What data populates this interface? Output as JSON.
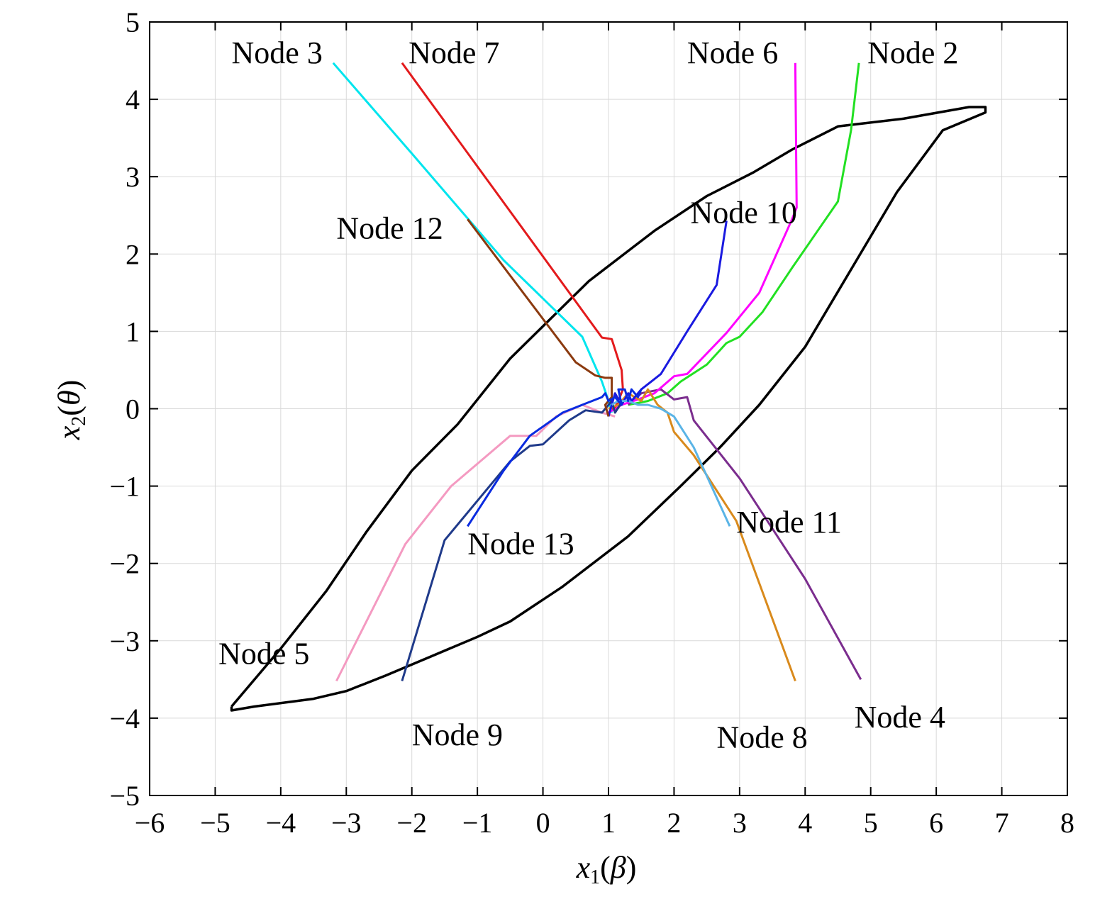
{
  "chart_data": {
    "type": "line",
    "title": "",
    "xlabel": {
      "var": "x",
      "sub": "1",
      "param": "β"
    },
    "ylabel": {
      "var": "x",
      "sub": "2",
      "param": "θ"
    },
    "xlim": [
      -6,
      8
    ],
    "ylim": [
      -5,
      5
    ],
    "xticks": [
      -6,
      -5,
      -4,
      -3,
      -2,
      -1,
      0,
      1,
      2,
      3,
      4,
      5,
      6,
      7,
      8
    ],
    "yticks": [
      -5,
      -4,
      -3,
      -2,
      -1,
      0,
      1,
      2,
      3,
      4,
      5
    ],
    "xtick_labels": [
      "−6",
      "−5",
      "−4",
      "−3",
      "−2",
      "−1",
      "0",
      "1",
      "2",
      "3",
      "4",
      "5",
      "6",
      "7",
      "8"
    ],
    "ytick_labels": [
      "−5",
      "−4",
      "−3",
      "−2",
      "−1",
      "0",
      "1",
      "2",
      "3",
      "4",
      "5"
    ],
    "grid": true,
    "boundary": {
      "color": "#000000",
      "points": [
        [
          -4.75,
          -3.85
        ],
        [
          -4.75,
          -3.9
        ],
        [
          -4.4,
          -3.85
        ],
        [
          -3.5,
          -3.75
        ],
        [
          -3,
          -3.65
        ],
        [
          -2.4,
          -3.45
        ],
        [
          -1.7,
          -3.2
        ],
        [
          -1,
          -2.95
        ],
        [
          -0.5,
          -2.75
        ],
        [
          0.3,
          -2.3
        ],
        [
          1.3,
          -1.65
        ],
        [
          2.1,
          -1.0
        ],
        [
          2.7,
          -0.5
        ],
        [
          3.3,
          0.05
        ],
        [
          4.0,
          0.8
        ],
        [
          4.7,
          1.8
        ],
        [
          5.4,
          2.8
        ],
        [
          6.1,
          3.6
        ],
        [
          6.75,
          3.83
        ],
        [
          6.75,
          3.9
        ],
        [
          6.5,
          3.9
        ],
        [
          5.5,
          3.75
        ],
        [
          4.5,
          3.65
        ],
        [
          3.8,
          3.35
        ],
        [
          3.2,
          3.05
        ],
        [
          2.5,
          2.75
        ],
        [
          1.7,
          2.3
        ],
        [
          0.7,
          1.65
        ],
        [
          -0.5,
          0.65
        ],
        [
          -1.3,
          -0.2
        ],
        [
          -2.0,
          -0.8
        ],
        [
          -2.7,
          -1.6
        ],
        [
          -3.3,
          -2.35
        ],
        [
          -4.0,
          -3.1
        ],
        [
          -4.75,
          -3.85
        ]
      ]
    },
    "series": [
      {
        "label": "Node 2",
        "color": "#22e022",
        "points": [
          [
            4.82,
            4.47
          ],
          [
            4.7,
            3.6
          ],
          [
            4.5,
            2.68
          ],
          [
            3.8,
            1.82
          ],
          [
            3.35,
            1.25
          ],
          [
            3.0,
            0.93
          ],
          [
            2.8,
            0.85
          ],
          [
            2.5,
            0.57
          ],
          [
            2.1,
            0.35
          ],
          [
            1.9,
            0.2
          ],
          [
            1.6,
            0.1
          ],
          [
            1.3,
            0.05
          ]
        ]
      },
      {
        "label": "Node 3",
        "color": "#00e5ee",
        "points": [
          [
            -3.2,
            4.47
          ],
          [
            -2.0,
            3.3
          ],
          [
            -0.6,
            1.92
          ],
          [
            0.6,
            0.93
          ],
          [
            0.9,
            0.35
          ],
          [
            0.98,
            0.15
          ],
          [
            1.05,
            -0.05
          ]
        ]
      },
      {
        "label": "Node 4",
        "color": "#7b2d8e",
        "points": [
          [
            4.85,
            -3.5
          ],
          [
            4.0,
            -2.2
          ],
          [
            3.0,
            -0.9
          ],
          [
            2.3,
            -0.15
          ],
          [
            2.2,
            0.15
          ],
          [
            2.0,
            0.12
          ],
          [
            1.8,
            0.25
          ],
          [
            1.5,
            0.2
          ],
          [
            1.3,
            0.05
          ]
        ]
      },
      {
        "label": "Node 5",
        "color": "#f49ac1",
        "points": [
          [
            -3.15,
            -3.52
          ],
          [
            -2.1,
            -1.75
          ],
          [
            -1.4,
            -1.0
          ],
          [
            -0.5,
            -0.35
          ],
          [
            -0.1,
            -0.35
          ],
          [
            0.2,
            -0.1
          ],
          [
            0.6,
            0.05
          ],
          [
            0.9,
            -0.05
          ],
          [
            1.1,
            -0.1
          ]
        ]
      },
      {
        "label": "Node 6",
        "color": "#ff00ff",
        "points": [
          [
            3.85,
            4.47
          ],
          [
            3.87,
            2.6
          ],
          [
            3.8,
            2.45
          ],
          [
            3.3,
            1.5
          ],
          [
            2.8,
            0.98
          ],
          [
            2.2,
            0.45
          ],
          [
            2.0,
            0.42
          ],
          [
            1.7,
            0.2
          ],
          [
            1.45,
            0.12
          ],
          [
            1.2,
            0.05
          ],
          [
            1.0,
            -0.05
          ]
        ]
      },
      {
        "label": "Node 7",
        "color": "#e31a1c",
        "points": [
          [
            -2.15,
            4.47
          ],
          [
            0.9,
            0.92
          ],
          [
            1.05,
            0.9
          ],
          [
            1.2,
            0.5
          ],
          [
            1.22,
            0.25
          ],
          [
            1.15,
            0.1
          ],
          [
            1.1,
            0.02
          ],
          [
            1.05,
            0.0
          ]
        ]
      },
      {
        "label": "Node 8",
        "color": "#d98a1c",
        "points": [
          [
            3.85,
            -3.52
          ],
          [
            2.95,
            -1.45
          ],
          [
            2.3,
            -0.6
          ],
          [
            2.0,
            -0.3
          ],
          [
            1.9,
            -0.05
          ],
          [
            1.75,
            0.05
          ],
          [
            1.6,
            0.25
          ],
          [
            1.5,
            0.1
          ],
          [
            1.3,
            0.2
          ],
          [
            1.15,
            0.05
          ],
          [
            1.0,
            0.0
          ]
        ]
      },
      {
        "label": "Node 9",
        "color": "#1f3a8a",
        "points": [
          [
            -2.15,
            -3.52
          ],
          [
            -1.5,
            -1.7
          ],
          [
            -0.5,
            -0.68
          ],
          [
            -0.2,
            -0.48
          ],
          [
            0.0,
            -0.46
          ],
          [
            0.4,
            -0.15
          ],
          [
            0.65,
            -0.02
          ],
          [
            0.9,
            -0.05
          ],
          [
            1.05,
            0.1
          ],
          [
            1.1,
            -0.05
          ],
          [
            1.2,
            0.08
          ]
        ]
      },
      {
        "label": "Node 10",
        "color": "#1a1ae0",
        "points": [
          [
            2.8,
            2.43
          ],
          [
            2.65,
            1.6
          ],
          [
            2.2,
            1.0
          ],
          [
            1.8,
            0.45
          ],
          [
            1.65,
            0.35
          ],
          [
            1.5,
            0.25
          ],
          [
            1.35,
            0.1
          ],
          [
            1.3,
            0.2
          ],
          [
            1.2,
            0.05
          ],
          [
            1.1,
            0.2
          ],
          [
            1.0,
            -0.1
          ]
        ]
      },
      {
        "label": "Node 11",
        "color": "#5ab4e6",
        "points": [
          [
            2.85,
            -1.52
          ],
          [
            2.3,
            -0.5
          ],
          [
            2.0,
            -0.1
          ],
          [
            1.8,
            0.0
          ],
          [
            1.6,
            0.05
          ],
          [
            1.45,
            0.05
          ],
          [
            1.3,
            0.1
          ],
          [
            1.15,
            0.1
          ],
          [
            1.05,
            0.05
          ]
        ]
      },
      {
        "label": "Node 12",
        "color": "#8b3a0f",
        "points": [
          [
            -1.15,
            2.45
          ],
          [
            0.5,
            0.6
          ],
          [
            0.8,
            0.43
          ],
          [
            0.95,
            0.4
          ],
          [
            1.05,
            0.4
          ],
          [
            1.05,
            0.15
          ],
          [
            0.95,
            0.05
          ],
          [
            1.0,
            -0.1
          ]
        ]
      },
      {
        "label": "Node 13",
        "color": "#0a2be0",
        "points": [
          [
            -1.15,
            -1.52
          ],
          [
            -0.6,
            -0.8
          ],
          [
            -0.2,
            -0.35
          ],
          [
            0.3,
            -0.05
          ],
          [
            0.6,
            0.05
          ],
          [
            0.9,
            0.15
          ],
          [
            0.95,
            0.2
          ],
          [
            1.0,
            0.1
          ],
          [
            1.1,
            0.15
          ],
          [
            1.2,
            0.05
          ],
          [
            1.15,
            0.25
          ],
          [
            1.25,
            0.25
          ],
          [
            1.3,
            0.1
          ],
          [
            1.35,
            0.25
          ],
          [
            1.45,
            0.15
          ],
          [
            1.5,
            0.25
          ]
        ]
      }
    ],
    "annotations": [
      {
        "text": "Node 3",
        "x": -4.75,
        "y": 4.47
      },
      {
        "text": "Node 7",
        "x": -2.05,
        "y": 4.47
      },
      {
        "text": "Node 6",
        "x": 2.2,
        "y": 4.47
      },
      {
        "text": "Node 2",
        "x": 4.95,
        "y": 4.47
      },
      {
        "text": "Node 12",
        "x": -3.15,
        "y": 2.2
      },
      {
        "text": "Node 10",
        "x": 2.25,
        "y": 2.4
      },
      {
        "text": "Node 11",
        "x": 2.95,
        "y": -1.6
      },
      {
        "text": "Node 13",
        "x": -1.15,
        "y": -1.88
      },
      {
        "text": "Node 5",
        "x": -4.95,
        "y": -3.3
      },
      {
        "text": "Node 9",
        "x": -2.0,
        "y": -4.35
      },
      {
        "text": "Node 8",
        "x": 2.65,
        "y": -4.38
      },
      {
        "text": "Node 4",
        "x": 4.75,
        "y": -4.12
      }
    ]
  }
}
